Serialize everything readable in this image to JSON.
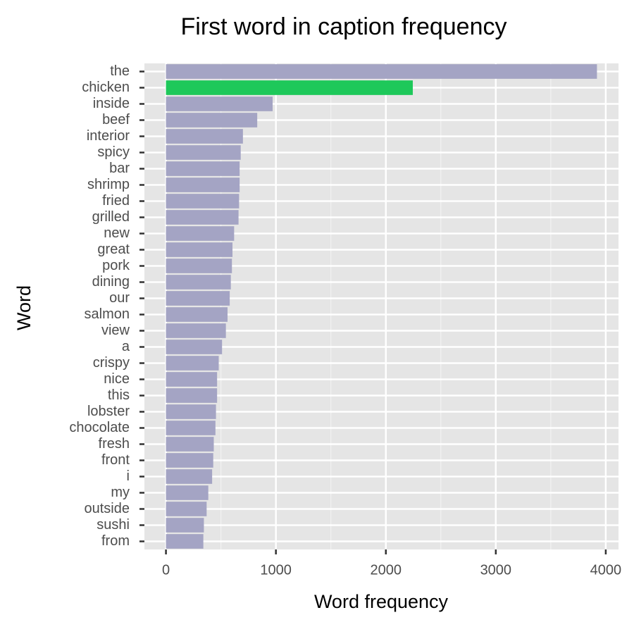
{
  "chart_data": {
    "type": "bar",
    "orientation": "horizontal",
    "title": "First word in caption frequency",
    "x_label": "Word frequency",
    "y_label": "Word",
    "categories": [
      "the",
      "chicken",
      "inside",
      "beef",
      "interior",
      "spicy",
      "bar",
      "shrimp",
      "fried",
      "grilled",
      "new",
      "great",
      "pork",
      "dining",
      "our",
      "salmon",
      "view",
      "a",
      "crispy",
      "nice",
      "this",
      "lobster",
      "chocolate",
      "fresh",
      "front",
      "i",
      "my",
      "outside",
      "sushi",
      "from"
    ],
    "values": [
      3920,
      2245,
      970,
      830,
      700,
      680,
      670,
      670,
      665,
      660,
      620,
      605,
      600,
      590,
      580,
      560,
      545,
      510,
      480,
      465,
      465,
      455,
      450,
      435,
      430,
      420,
      385,
      370,
      345,
      340
    ],
    "colors": [
      "#a4a4c4",
      "#1ec85a",
      "#a4a4c4",
      "#a4a4c4",
      "#a4a4c4",
      "#a4a4c4",
      "#a4a4c4",
      "#a4a4c4",
      "#a4a4c4",
      "#a4a4c4",
      "#a4a4c4",
      "#a4a4c4",
      "#a4a4c4",
      "#a4a4c4",
      "#a4a4c4",
      "#a4a4c4",
      "#a4a4c4",
      "#a4a4c4",
      "#a4a4c4",
      "#a4a4c4",
      "#a4a4c4",
      "#a4a4c4",
      "#a4a4c4",
      "#a4a4c4",
      "#a4a4c4",
      "#a4a4c4",
      "#a4a4c4",
      "#a4a4c4",
      "#a4a4c4",
      "#a4a4c4"
    ],
    "xlim": [
      -196,
      4116
    ],
    "xticks": [
      0,
      1000,
      2000,
      3000,
      4000
    ],
    "xminor_ticks": [
      500,
      1500,
      2500,
      3500
    ],
    "grid": true
  }
}
